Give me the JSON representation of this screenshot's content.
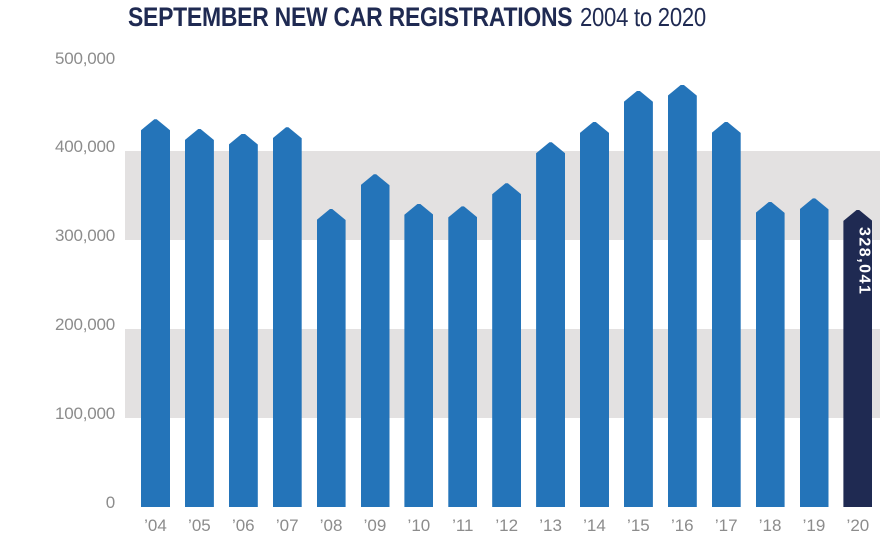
{
  "header": {
    "title": "SEPTEMBER NEW CAR REGISTRATIONS",
    "subtitle": "2004 to 2020"
  },
  "chart_data": {
    "type": "bar",
    "title": "SEPTEMBER NEW CAR REGISTRATIONS",
    "subtitle": "2004 to 2020",
    "categories": [
      "’04",
      "’05",
      "’06",
      "’07",
      "’08",
      "’09",
      "’10",
      "’11",
      "’12",
      "’13",
      "’14",
      "’15",
      "’16",
      "’17",
      "’18",
      "’19",
      "’20"
    ],
    "years": [
      2004,
      2005,
      2006,
      2007,
      2008,
      2009,
      2010,
      2011,
      2012,
      2013,
      2014,
      2015,
      2016,
      2017,
      2018,
      2019,
      2020
    ],
    "values": [
      430000,
      419000,
      414000,
      421000,
      329000,
      368000,
      335000,
      332000,
      358000,
      404000,
      427000,
      462000,
      469000,
      427000,
      337000,
      341000,
      328041
    ],
    "highlight": {
      "index": 16,
      "label": "328,041"
    },
    "y_ticks": [
      {
        "label": "500,000",
        "value": 500000
      },
      {
        "label": "400,000",
        "value": 400000
      },
      {
        "label": "300,000",
        "value": 300000
      },
      {
        "label": "200,000",
        "value": 200000
      },
      {
        "label": "100,000",
        "value": 100000
      },
      {
        "label": "0",
        "value": 0
      }
    ],
    "ylim": [
      0,
      500000
    ],
    "background_bands": [
      [
        400000,
        300000
      ],
      [
        200000,
        100000
      ]
    ],
    "legend": "none",
    "colors": {
      "bar": "#2474B9",
      "highlight_bar": "#1F2A52",
      "band": "#E3E1E1",
      "axis_text": "#8C8C8C",
      "title_text": "#1F2A52",
      "data_label_text": "#FFFFFF"
    }
  }
}
